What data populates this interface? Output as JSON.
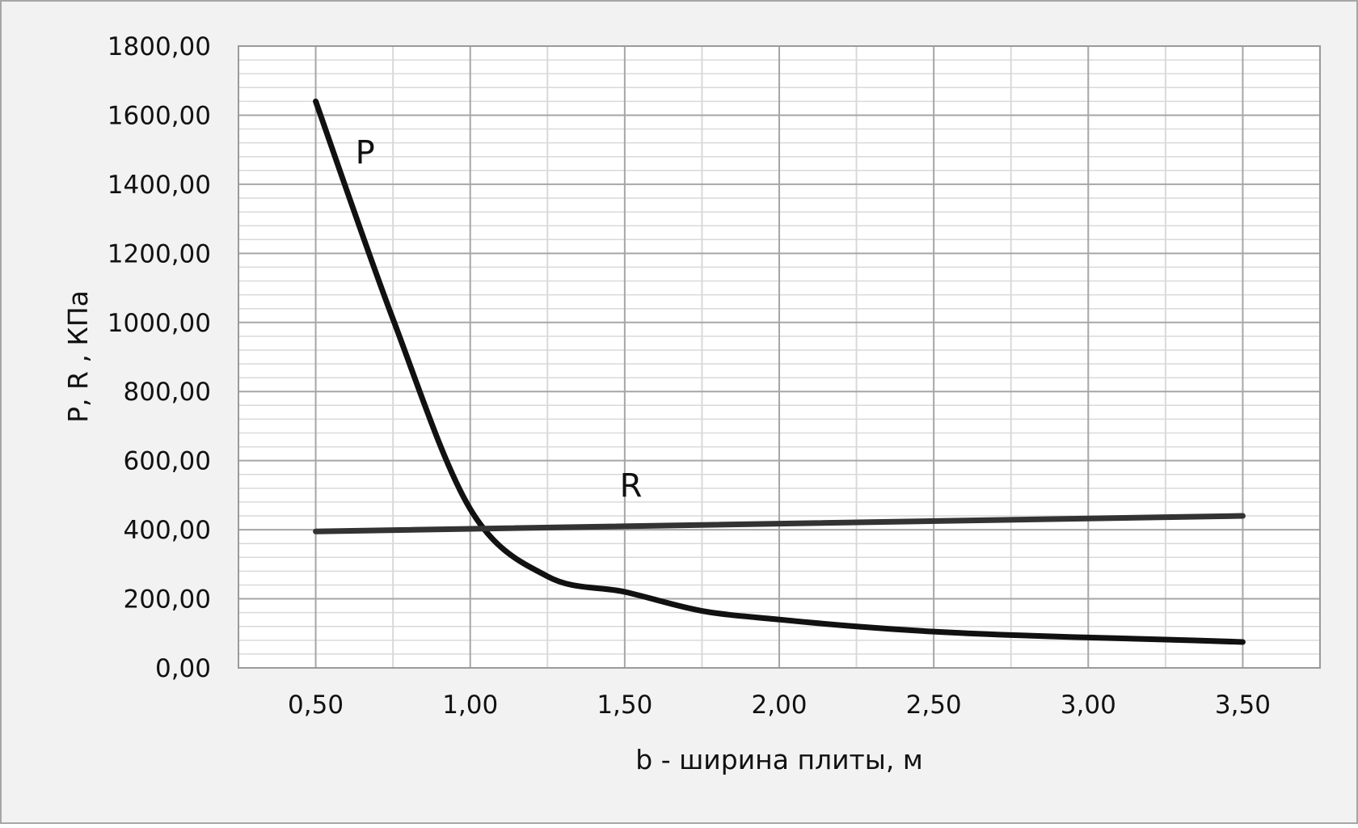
{
  "chart_data": {
    "type": "line",
    "title": "",
    "xlabel": "b - ширина плиты, м",
    "ylabel": "P, R , КПа",
    "xlim": [
      0.25,
      3.75
    ],
    "ylim": [
      0,
      1800
    ],
    "grid": true,
    "legend": "none",
    "x_ticks": [
      {
        "value": 0.5,
        "label": "0,50"
      },
      {
        "value": 1.0,
        "label": "1,00"
      },
      {
        "value": 1.5,
        "label": "1,50"
      },
      {
        "value": 2.0,
        "label": "2,00"
      },
      {
        "value": 2.5,
        "label": "2,50"
      },
      {
        "value": 3.0,
        "label": "3,00"
      },
      {
        "value": 3.5,
        "label": "3,50"
      }
    ],
    "y_ticks": [
      {
        "value": 0,
        "label": "0,00"
      },
      {
        "value": 200,
        "label": "200,00"
      },
      {
        "value": 400,
        "label": "400,00"
      },
      {
        "value": 600,
        "label": "600,00"
      },
      {
        "value": 800,
        "label": "800,00"
      },
      {
        "value": 1000,
        "label": "1000,00"
      },
      {
        "value": 1200,
        "label": "1200,00"
      },
      {
        "value": 1400,
        "label": "1400,00"
      },
      {
        "value": 1600,
        "label": "1600,00"
      },
      {
        "value": 1800,
        "label": "1800,00"
      }
    ],
    "series": [
      {
        "name": "P",
        "color": "#111111",
        "x": [
          0.5,
          0.75,
          1.0,
          1.25,
          1.5,
          1.75,
          2.0,
          2.25,
          2.5,
          2.75,
          3.0,
          3.25,
          3.5
        ],
        "y": [
          1640,
          1010,
          460,
          265,
          220,
          165,
          140,
          120,
          105,
          95,
          88,
          82,
          75
        ]
      },
      {
        "name": "R",
        "color": "#333333",
        "x": [
          0.5,
          3.5
        ],
        "y": [
          395,
          440
        ]
      }
    ],
    "annotations": [
      {
        "text": "P",
        "x": 0.66,
        "y": 1460
      },
      {
        "text": "R",
        "x": 1.52,
        "y": 495
      }
    ]
  }
}
